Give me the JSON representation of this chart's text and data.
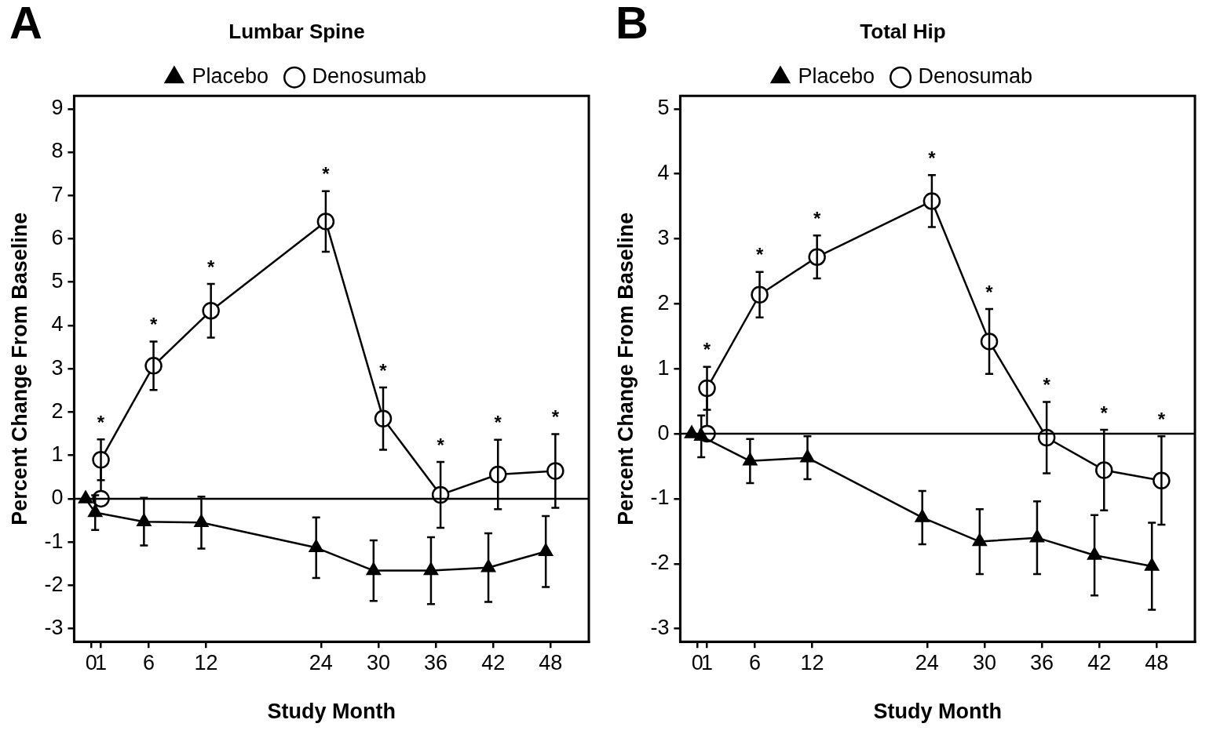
{
  "chart_data": [
    {
      "type": "line",
      "title": "Lumbar Spine",
      "xlabel": "Study Month",
      "ylabel": "Percent Change From Baseline",
      "xlim": [
        -1.8,
        52
      ],
      "xticks": [
        0,
        1,
        6,
        12,
        24,
        30,
        36,
        42,
        48
      ],
      "ylim": [
        -3.3,
        9.3
      ],
      "yticks": [
        -3,
        -2,
        -1,
        0,
        1,
        2,
        3,
        4,
        5,
        6,
        7,
        8,
        9
      ],
      "grid": false,
      "legend": "top",
      "ref_lines": [
        {
          "axis": "y",
          "value": 0
        }
      ],
      "annotations": [
        "A",
        {
          "text": "*",
          "x": 1,
          "y": 0.9
        },
        {
          "text": "*",
          "x": 6.5,
          "y": 3.07
        },
        {
          "text": "*",
          "x": 12.5,
          "y": 4.34
        },
        {
          "text": "*",
          "x": 24.5,
          "y": 6.4
        },
        {
          "text": "*",
          "x": 30.5,
          "y": 1.85
        },
        {
          "text": "*",
          "x": 36.5,
          "y": 0.09
        },
        {
          "text": "*",
          "x": 42.5,
          "y": 0.56
        },
        {
          "text": "*",
          "x": 48.5,
          "y": 0.64
        }
      ],
      "series": [
        {
          "name": "Placebo",
          "color": "#000000",
          "marker": "triangle",
          "x": [
            -0.6,
            0.4,
            5.5,
            11.5,
            23.5,
            29.5,
            35.5,
            41.5,
            47.5
          ],
          "values": [
            0,
            -0.32,
            -0.53,
            -0.55,
            -1.13,
            -1.66,
            -1.66,
            -1.59,
            -1.22
          ],
          "errors": [
            null,
            0.4,
            0.55,
            0.6,
            0.7,
            0.7,
            0.77,
            0.79,
            0.82
          ]
        },
        {
          "name": "Denosumab",
          "color": "#000000",
          "marker": "circle",
          "x": [
            1,
            1,
            6.5,
            12.5,
            24.5,
            30.5,
            36.5,
            42.5,
            48.5
          ],
          "values": [
            0,
            0.9,
            3.07,
            4.34,
            6.4,
            1.85,
            0.09,
            0.56,
            0.64
          ],
          "errors": [
            null,
            0.47,
            0.56,
            0.62,
            0.7,
            0.72,
            0.76,
            0.8,
            0.85
          ]
        }
      ]
    },
    {
      "type": "line",
      "title": "Total Hip",
      "xlabel": "Study Month",
      "ylabel": "Percent Change From Baseline",
      "xlim": [
        -1.8,
        52
      ],
      "xticks": [
        0,
        1,
        6,
        12,
        24,
        30,
        36,
        42,
        48
      ],
      "ylim": [
        -3.2,
        5.2
      ],
      "yticks": [
        -3,
        -2,
        -1,
        0,
        1,
        2,
        3,
        4,
        5
      ],
      "grid": false,
      "legend": "top",
      "ref_lines": [
        {
          "axis": "y",
          "value": 0
        }
      ],
      "annotations": [
        "B",
        {
          "text": "*",
          "x": 1,
          "y": 0.7
        },
        {
          "text": "*",
          "x": 6.5,
          "y": 2.14
        },
        {
          "text": "*",
          "x": 12.5,
          "y": 2.72
        },
        {
          "text": "*",
          "x": 24.5,
          "y": 3.58
        },
        {
          "text": "*",
          "x": 30.5,
          "y": 1.42
        },
        {
          "text": "*",
          "x": 36.5,
          "y": -0.06
        },
        {
          "text": "*",
          "x": 42.5,
          "y": -0.56
        },
        {
          "text": "*",
          "x": 48.5,
          "y": -0.72
        }
      ],
      "series": [
        {
          "name": "Placebo",
          "color": "#000000",
          "marker": "triangle",
          "x": [
            -0.6,
            0.4,
            5.5,
            11.5,
            23.5,
            29.5,
            35.5,
            41.5,
            47.5
          ],
          "values": [
            0,
            -0.04,
            -0.42,
            -0.37,
            -1.29,
            -1.66,
            -1.6,
            -1.87,
            -2.04
          ],
          "errors": [
            null,
            0.32,
            0.34,
            0.33,
            0.41,
            0.5,
            0.56,
            0.62,
            0.67
          ]
        },
        {
          "name": "Denosumab",
          "color": "#000000",
          "marker": "circle",
          "x": [
            1,
            1,
            6.5,
            12.5,
            24.5,
            30.5,
            36.5,
            42.5,
            48.5
          ],
          "values": [
            0,
            0.7,
            2.14,
            2.72,
            3.58,
            1.42,
            -0.06,
            -0.56,
            -0.72
          ],
          "errors": [
            null,
            0.33,
            0.35,
            0.33,
            0.4,
            0.5,
            0.55,
            0.62,
            0.68
          ]
        }
      ]
    }
  ]
}
